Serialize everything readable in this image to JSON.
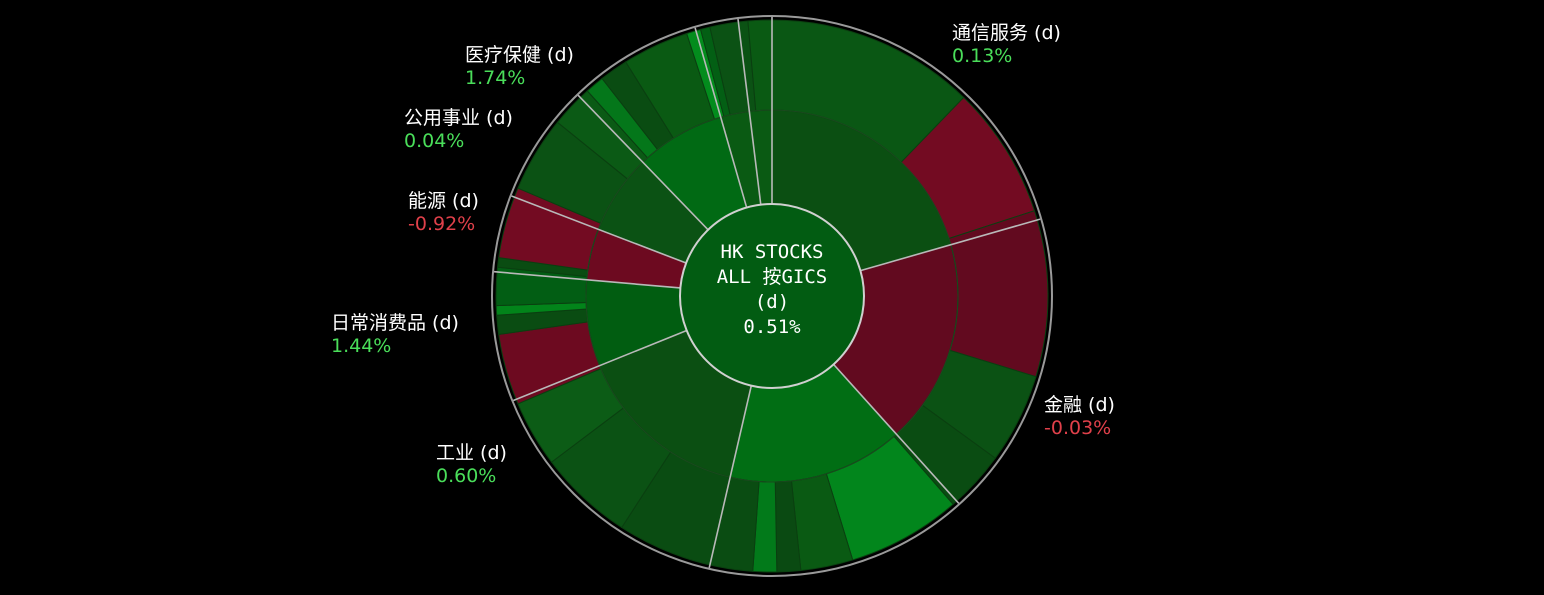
{
  "colors": {
    "background": "#000000",
    "positive_text": "#4ade5a",
    "negative_text": "#e0404a",
    "separator": "#b9b9b9",
    "outer_ring": "#9a9a9a"
  },
  "center": {
    "line1": "HK STOCKS",
    "line2": "ALL 按GICS",
    "line3": "(d)",
    "value": "0.51%"
  },
  "chart_data": {
    "type": "sunburst",
    "title": "HK STOCKS ALL 按GICS (d)",
    "total_change": "0.51%",
    "sectors": [
      {
        "name": "通信服务 (d)",
        "change": "0.13%",
        "sign": "pos",
        "share": 0.16
      },
      {
        "name": "金融 (d)",
        "change": "-0.03%",
        "sign": "neg",
        "share": 0.2
      },
      {
        "name": "工业 (d)",
        "change": "0.60%",
        "sign": "pos",
        "share": 0.32
      },
      {
        "name": "日常消费品 (d)",
        "change": "1.44%",
        "sign": "pos",
        "share": 0.09
      },
      {
        "name": "能源 (d)",
        "change": "-0.92%",
        "sign": "neg",
        "share": 0.05
      },
      {
        "name": "公用事业 (d)",
        "change": "0.04%",
        "sign": "pos",
        "share": 0.07
      },
      {
        "name": "医疗保健 (d)",
        "change": "1.74%",
        "sign": "pos",
        "share": 0.11
      }
    ]
  }
}
